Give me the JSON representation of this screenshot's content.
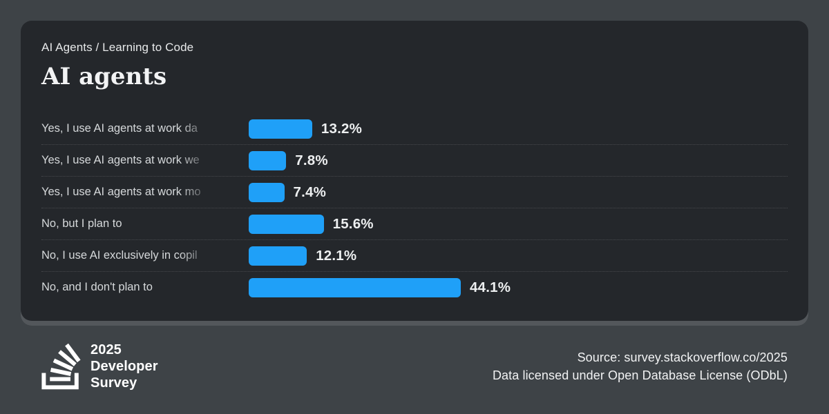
{
  "colors": {
    "page_background": "#3e4347",
    "card_background": "#24272b",
    "bar_color": "#1fa0f8",
    "label_text": "#d6d9db",
    "value_text": "#edeff0",
    "separator": "rgba(255,255,255,0.16)",
    "logo_color": "#ffffff"
  },
  "card": {
    "breadcrumb": "AI Agents / Learning to Code",
    "title": "AI agents"
  },
  "chart_data": {
    "type": "bar",
    "orientation": "horizontal",
    "title": "AI agents",
    "subtitle": "AI Agents / Learning to Code",
    "categories": [
      "Yes, I use AI agents at work da",
      "Yes, I use AI agents at work we",
      "Yes, I use AI agents at work mo",
      "No, but I plan to",
      "No, I use AI exclusively in copil",
      "No, and I don't plan to"
    ],
    "values": [
      13.2,
      7.8,
      7.4,
      15.6,
      12.1,
      44.1
    ],
    "value_labels": [
      "13.2%",
      "7.8%",
      "7.4%",
      "15.6%",
      "12.1%",
      "44.1%"
    ],
    "xlim": [
      0,
      44.1
    ],
    "xlabel": "",
    "ylabel": "",
    "legend": "none",
    "grid": "dotted row separators",
    "bar_color": "#1fa0f8",
    "category_labels_truncated_with_fade": true
  },
  "footer": {
    "logo": {
      "icon": "stackoverflow-logo-icon",
      "line1": "2025",
      "line2": "Developer",
      "line3": "Survey"
    },
    "source": "Source: survey.stackoverflow.co/2025",
    "license": "Data licensed under Open Database License (ODbL)"
  }
}
